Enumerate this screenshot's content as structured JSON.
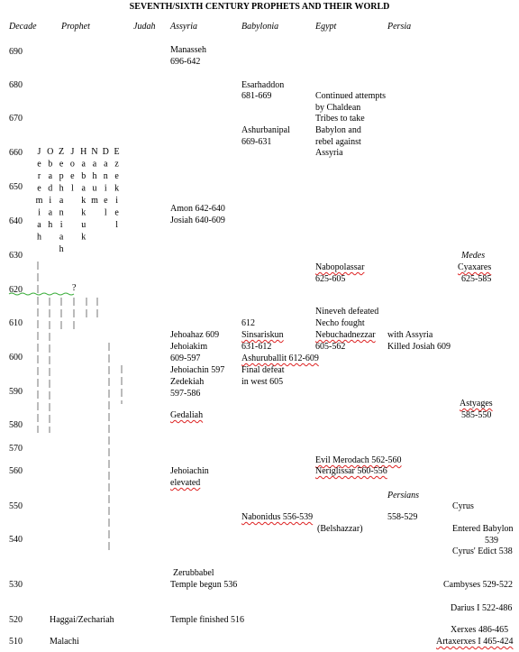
{
  "title": "SEVENTH/SIXTH CENTURY PROPHETS AND THEIR WORLD",
  "headers": [
    "Decade",
    "Prophet",
    "Judah",
    "Assyria",
    "Babylonia",
    "Egypt",
    "Persia"
  ],
  "decades": [
    "690",
    "680",
    "670",
    "660",
    "650",
    "640",
    "630",
    "620",
    "610",
    "600",
    "590",
    "580",
    "570",
    "560",
    "550",
    "540",
    "530",
    "520",
    "510"
  ],
  "prophets": [
    "Jeremiah",
    "Obadiah",
    "Zephaniah",
    "Joel",
    "Habakkuk",
    "Nahum",
    "Daniel",
    "Ezekiel"
  ],
  "entries": [
    "Manasseh",
    "696-642",
    "Amon 642-640",
    "Josiah 640-609",
    "Jehoahaz 609",
    "Jehoiakim",
    "609-597",
    "Jehoiachin 597",
    "Zedekiah",
    "597-586",
    "Gedaliah",
    "Jehoiachin",
    "elevated",
    "Zerubbabel",
    "Temple begun 536",
    "Temple finished 516",
    "Esarhaddon",
    "681-669",
    "Ashurbanipal",
    "669-631",
    "612",
    "Sinsariskun",
    "631-612",
    "Ashuruballit 612-609",
    "Final defeat",
    "in west 605",
    "Nabonidus 556-539",
    "Continued attempts",
    "by Chaldean",
    "Tribes to take",
    "Babylon and",
    "rebel against",
    "Assyria",
    "Nabopolassar",
    "625-605",
    "Nineveh defeated",
    "Necho fought",
    "Nebuchadnezzar",
    "605-562",
    "Evil Merodach 562-560",
    "Neriglissar 560-556",
    "(Belshazzar)",
    "with Assyria",
    "Killed Josiah 609",
    "Persians",
    "558-529",
    "Medes",
    "Cyaxares",
    "625-585",
    "Astyages",
    "585-550",
    "Cyrus",
    "Entered Babylon",
    "539",
    "Cyrus' Edict 538",
    "Cambyses 529-522",
    "Darius I 522-486",
    "Xerxes 486-465",
    "Artaxerxes I 465-424",
    "Haggai/Zechariah",
    "Malachi",
    "?"
  ]
}
